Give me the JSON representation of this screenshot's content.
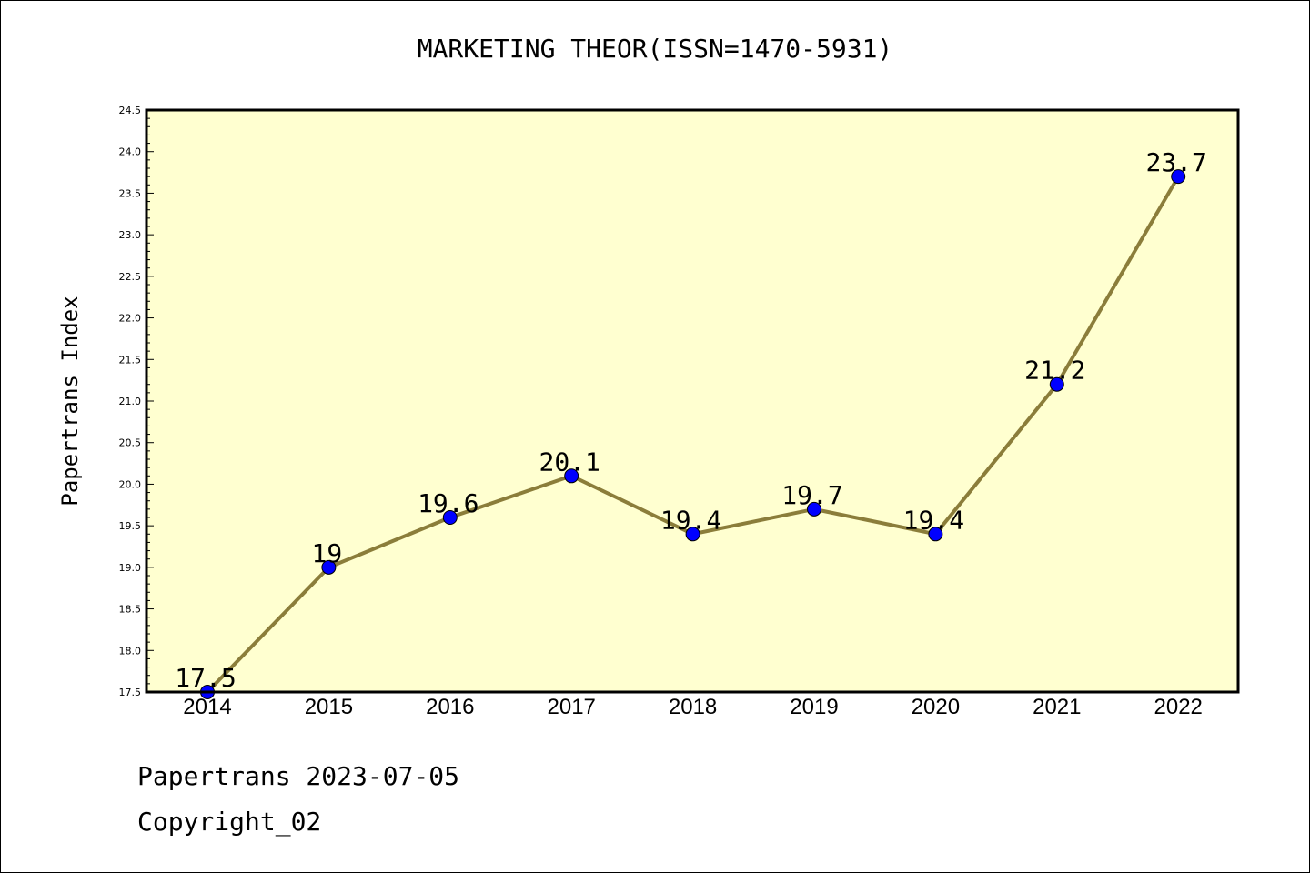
{
  "chart_data": {
    "type": "line",
    "title": "MARKETING THEOR(ISSN=1470-5931)",
    "ylabel": "Papertrans Index",
    "xlabel": "",
    "categories": [
      "2014",
      "2015",
      "2016",
      "2017",
      "2018",
      "2019",
      "2020",
      "2021",
      "2022"
    ],
    "values": [
      17.5,
      19,
      19.6,
      20.1,
      19.4,
      19.7,
      19.4,
      21.2,
      23.7
    ],
    "data_labels": [
      "17.5",
      "19",
      "19.6",
      "20.1",
      "19.4",
      "19.7",
      "19.4",
      "21.2",
      "23.7"
    ],
    "ylim": [
      17.5,
      24.5
    ],
    "yticks": [
      "17.5",
      "18.0",
      "18.5",
      "19.0",
      "19.5",
      "20.0",
      "20.5",
      "21.0",
      "21.5",
      "22.0",
      "22.5",
      "23.0",
      "23.5",
      "24.0",
      "24.5"
    ],
    "grid": false,
    "colors": {
      "plot_background": "#ffffd0",
      "line": "#8b7d3a",
      "marker": "#0000ff"
    }
  },
  "footer": {
    "date_text": "Papertrans 2023-07-05",
    "copyright_text": "Copyright_02"
  }
}
